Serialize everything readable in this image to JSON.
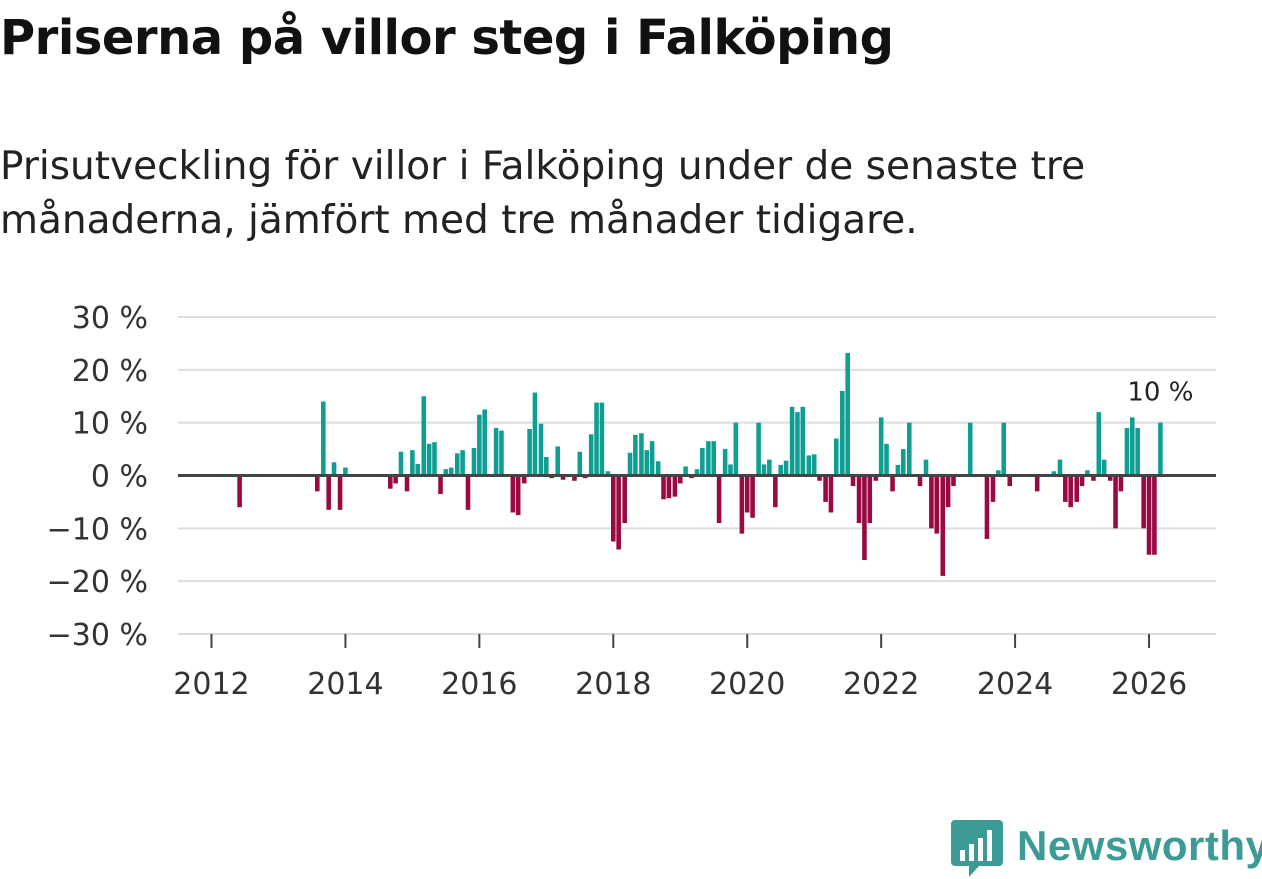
{
  "title": "Priserna på villor steg i Falköping",
  "subtitle": "Prisutveckling för villor i Falköping under de senaste tre månaderna, jämfört med tre månader tidigare.",
  "logo": {
    "text": "Newsworthy",
    "icon": "newsworthy-logo-icon",
    "color": "#3d9b95"
  },
  "colors": {
    "positive": "#0f9e92",
    "negative": "#990a42",
    "grid": "#dddddd",
    "zero": "#444444"
  },
  "chart_data": {
    "type": "bar",
    "title": "Priserna på villor steg i Falköping",
    "xlabel": "",
    "ylabel": "",
    "ylim": [
      -30,
      30
    ],
    "xlim": [
      2011.5,
      2027.0
    ],
    "yticks": [
      30,
      20,
      10,
      0,
      -10,
      -20,
      -30
    ],
    "ytick_labels": [
      "30 %",
      "20 %",
      "10 %",
      "0 %",
      "−10 %",
      "−20 %",
      "−30 %"
    ],
    "xticks": [
      2012,
      2014,
      2016,
      2018,
      2020,
      2022,
      2024,
      2026
    ],
    "xtick_labels": [
      "2012",
      "2014",
      "2016",
      "2018",
      "2020",
      "2022",
      "2024",
      "2026"
    ],
    "annotation": {
      "text": "10 %",
      "x": 2026.17,
      "y": 10
    },
    "series": [
      {
        "name": "Prisutveckling",
        "unit": "%",
        "points": [
          {
            "x": 2012.42,
            "y": -6
          },
          {
            "x": 2013.58,
            "y": -3
          },
          {
            "x": 2013.67,
            "y": 14
          },
          {
            "x": 2013.75,
            "y": -6.5
          },
          {
            "x": 2013.83,
            "y": 2.5
          },
          {
            "x": 2013.92,
            "y": -6.5
          },
          {
            "x": 2014.0,
            "y": 1.5
          },
          {
            "x": 2014.67,
            "y": -2.5
          },
          {
            "x": 2014.75,
            "y": -1.5
          },
          {
            "x": 2014.83,
            "y": 4.5
          },
          {
            "x": 2014.92,
            "y": -3
          },
          {
            "x": 2015.0,
            "y": 4.8
          },
          {
            "x": 2015.08,
            "y": 2.2
          },
          {
            "x": 2015.17,
            "y": 15
          },
          {
            "x": 2015.25,
            "y": 6
          },
          {
            "x": 2015.33,
            "y": 6.3
          },
          {
            "x": 2015.42,
            "y": -3.5
          },
          {
            "x": 2015.5,
            "y": 1.2
          },
          {
            "x": 2015.58,
            "y": 1.5
          },
          {
            "x": 2015.67,
            "y": 4.2
          },
          {
            "x": 2015.75,
            "y": 4.8
          },
          {
            "x": 2015.83,
            "y": -6.5
          },
          {
            "x": 2015.92,
            "y": 5.2
          },
          {
            "x": 2016.0,
            "y": 11.5
          },
          {
            "x": 2016.08,
            "y": 12.5
          },
          {
            "x": 2016.25,
            "y": 9
          },
          {
            "x": 2016.33,
            "y": 8.5
          },
          {
            "x": 2016.5,
            "y": -7
          },
          {
            "x": 2016.58,
            "y": -7.5
          },
          {
            "x": 2016.67,
            "y": -1.5
          },
          {
            "x": 2016.75,
            "y": 8.8
          },
          {
            "x": 2016.83,
            "y": 15.7
          },
          {
            "x": 2016.92,
            "y": 9.8
          },
          {
            "x": 2017.0,
            "y": 3.5
          },
          {
            "x": 2017.08,
            "y": -0.5
          },
          {
            "x": 2017.17,
            "y": 5.5
          },
          {
            "x": 2017.25,
            "y": -0.8
          },
          {
            "x": 2017.42,
            "y": -1
          },
          {
            "x": 2017.5,
            "y": 4.5
          },
          {
            "x": 2017.58,
            "y": -0.5
          },
          {
            "x": 2017.67,
            "y": 7.8
          },
          {
            "x": 2017.75,
            "y": 13.8
          },
          {
            "x": 2017.83,
            "y": 13.8
          },
          {
            "x": 2017.92,
            "y": 0.8
          },
          {
            "x": 2018.0,
            "y": -12.5
          },
          {
            "x": 2018.08,
            "y": -14
          },
          {
            "x": 2018.17,
            "y": -9
          },
          {
            "x": 2018.25,
            "y": 4.3
          },
          {
            "x": 2018.33,
            "y": 7.7
          },
          {
            "x": 2018.42,
            "y": 8
          },
          {
            "x": 2018.5,
            "y": 4.8
          },
          {
            "x": 2018.58,
            "y": 6.5
          },
          {
            "x": 2018.67,
            "y": 2.7
          },
          {
            "x": 2018.75,
            "y": -4.5
          },
          {
            "x": 2018.83,
            "y": -4.3
          },
          {
            "x": 2018.92,
            "y": -4
          },
          {
            "x": 2019.0,
            "y": -1.5
          },
          {
            "x": 2019.08,
            "y": 1.7
          },
          {
            "x": 2019.17,
            "y": -0.5
          },
          {
            "x": 2019.25,
            "y": 1.2
          },
          {
            "x": 2019.33,
            "y": 5.2
          },
          {
            "x": 2019.42,
            "y": 6.5
          },
          {
            "x": 2019.5,
            "y": 6.5
          },
          {
            "x": 2019.58,
            "y": -9
          },
          {
            "x": 2019.67,
            "y": 5
          },
          {
            "x": 2019.75,
            "y": 2.1
          },
          {
            "x": 2019.83,
            "y": 10
          },
          {
            "x": 2019.92,
            "y": -11
          },
          {
            "x": 2020.0,
            "y": -7
          },
          {
            "x": 2020.08,
            "y": -8
          },
          {
            "x": 2020.17,
            "y": 10
          },
          {
            "x": 2020.25,
            "y": 2.1
          },
          {
            "x": 2020.33,
            "y": 3
          },
          {
            "x": 2020.42,
            "y": -6
          },
          {
            "x": 2020.5,
            "y": 2
          },
          {
            "x": 2020.58,
            "y": 2.8
          },
          {
            "x": 2020.67,
            "y": 13
          },
          {
            "x": 2020.75,
            "y": 12
          },
          {
            "x": 2020.83,
            "y": 13
          },
          {
            "x": 2020.92,
            "y": 3.8
          },
          {
            "x": 2021.0,
            "y": 4
          },
          {
            "x": 2021.08,
            "y": -1
          },
          {
            "x": 2021.17,
            "y": -5
          },
          {
            "x": 2021.25,
            "y": -7
          },
          {
            "x": 2021.33,
            "y": 7
          },
          {
            "x": 2021.42,
            "y": 16
          },
          {
            "x": 2021.5,
            "y": 23.2
          },
          {
            "x": 2021.58,
            "y": -2
          },
          {
            "x": 2021.67,
            "y": -9
          },
          {
            "x": 2021.75,
            "y": -16
          },
          {
            "x": 2021.83,
            "y": -9
          },
          {
            "x": 2021.92,
            "y": -1
          },
          {
            "x": 2022.0,
            "y": 11
          },
          {
            "x": 2022.08,
            "y": 6
          },
          {
            "x": 2022.17,
            "y": -3
          },
          {
            "x": 2022.25,
            "y": 2
          },
          {
            "x": 2022.33,
            "y": 5
          },
          {
            "x": 2022.42,
            "y": 10
          },
          {
            "x": 2022.58,
            "y": -2
          },
          {
            "x": 2022.67,
            "y": 3
          },
          {
            "x": 2022.75,
            "y": -10
          },
          {
            "x": 2022.83,
            "y": -11
          },
          {
            "x": 2022.92,
            "y": -19
          },
          {
            "x": 2023.0,
            "y": -6
          },
          {
            "x": 2023.08,
            "y": -2
          },
          {
            "x": 2023.33,
            "y": 10
          },
          {
            "x": 2023.58,
            "y": -12
          },
          {
            "x": 2023.67,
            "y": -5
          },
          {
            "x": 2023.75,
            "y": 1
          },
          {
            "x": 2023.83,
            "y": 10
          },
          {
            "x": 2023.92,
            "y": -2
          },
          {
            "x": 2024.33,
            "y": -3
          },
          {
            "x": 2024.58,
            "y": 0.8
          },
          {
            "x": 2024.67,
            "y": 3
          },
          {
            "x": 2024.75,
            "y": -5
          },
          {
            "x": 2024.83,
            "y": -6
          },
          {
            "x": 2024.92,
            "y": -5
          },
          {
            "x": 2025.0,
            "y": -2
          },
          {
            "x": 2025.08,
            "y": 1
          },
          {
            "x": 2025.17,
            "y": -1
          },
          {
            "x": 2025.25,
            "y": 12
          },
          {
            "x": 2025.33,
            "y": 3
          },
          {
            "x": 2025.42,
            "y": -1
          },
          {
            "x": 2025.5,
            "y": -10
          },
          {
            "x": 2025.58,
            "y": -3
          },
          {
            "x": 2025.67,
            "y": 9
          },
          {
            "x": 2025.75,
            "y": 11
          },
          {
            "x": 2025.83,
            "y": 9
          },
          {
            "x": 2025.92,
            "y": -10
          },
          {
            "x": 2026.0,
            "y": -15
          },
          {
            "x": 2026.08,
            "y": -15
          },
          {
            "x": 2026.17,
            "y": 10
          }
        ]
      }
    ]
  }
}
